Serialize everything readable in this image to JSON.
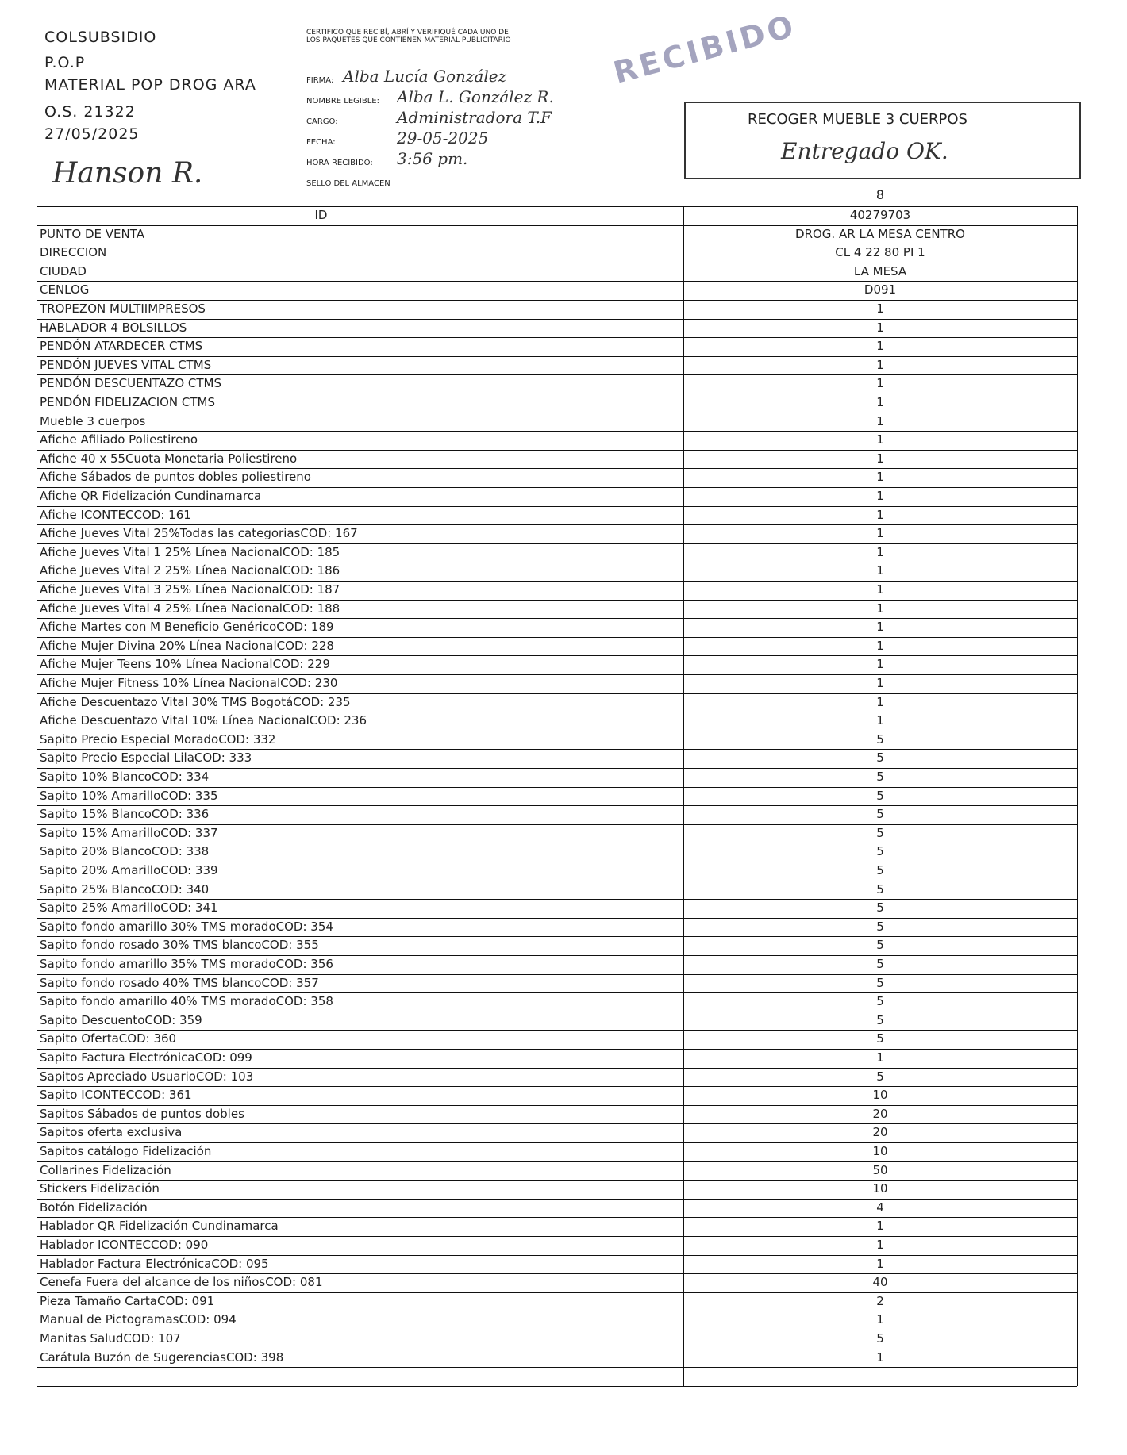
{
  "header": {
    "lines": [
      "COLSUBSIDIO",
      "P.O.P",
      "MATERIAL POP DROG ARA",
      "O.S. 21322",
      "27/05/2025"
    ],
    "signature": "Hanson R."
  },
  "certification": {
    "text": "CERTIFICO QUE RECIBÍ, ABRÍ Y VERIFIQUÉ CADA UNO DE LOS PAQUETES QUE CONTIENEN MATERIAL PUBLICITARIO",
    "fields": [
      {
        "label": "FIRMA:",
        "value": "Alba Lucía González"
      },
      {
        "label": "NOMBRE LEGIBLE:",
        "value": "Alba L. González R."
      },
      {
        "label": "CARGO:",
        "value": "Administradora T.F"
      },
      {
        "label": "FECHA:",
        "value": "29-05-2025"
      },
      {
        "label": "HORA RECIBIDO:",
        "value": "3:56 pm."
      },
      {
        "label": "SELLO DEL ALMACEN",
        "value": ""
      }
    ]
  },
  "stamp": {
    "text": "RECIBIDO",
    "note": "RECOGER MUEBLE 3 CUERPOS",
    "handwritten": "Entregado OK."
  },
  "table": {
    "column": "8",
    "header_rows": [
      [
        "ID",
        "40279703"
      ],
      [
        "PUNTO DE VENTA",
        "DROG. AR LA MESA CENTRO"
      ],
      [
        "DIRECCION",
        "CL 4 22 80 PI 1"
      ],
      [
        "CIUDAD",
        "LA MESA"
      ],
      [
        "CENLOG",
        "D091"
      ]
    ],
    "rows": [
      [
        "TROPEZON MULTIIMPRESOS",
        "1"
      ],
      [
        "HABLADOR 4 BOLSILLOS",
        "1"
      ],
      [
        "PENDÓN ATARDECER CTMS",
        "1"
      ],
      [
        "PENDÓN JUEVES VITAL CTMS",
        "1"
      ],
      [
        "PENDÓN DESCUENTAZO CTMS",
        "1"
      ],
      [
        "PENDÓN FIDELIZACION CTMS",
        "1"
      ],
      [
        "Mueble 3 cuerpos",
        "1"
      ],
      [
        "Afiche Afiliado Poliestireno",
        "1"
      ],
      [
        "Afiche 40 x 55Cuota Monetaria Poliestireno",
        "1"
      ],
      [
        "Afiche Sábados de puntos dobles poliestireno",
        "1"
      ],
      [
        "Afiche QR Fidelización Cundinamarca",
        "1"
      ],
      [
        "Afiche ICONTECCOD: 161",
        "1"
      ],
      [
        "Afiche Jueves Vital 25%Todas las categoriasCOD: 167",
        "1"
      ],
      [
        "Afiche Jueves Vital 1 25% Línea NacionalCOD: 185",
        "1"
      ],
      [
        "Afiche Jueves Vital 2 25% Línea NacionalCOD: 186",
        "1"
      ],
      [
        "Afiche Jueves Vital 3 25% Línea NacionalCOD: 187",
        "1"
      ],
      [
        "Afiche Jueves Vital 4 25% Línea NacionalCOD: 188",
        "1"
      ],
      [
        "Afiche Martes con M Beneficio GenéricoCOD: 189",
        "1"
      ],
      [
        "Afiche Mujer Divina 20% Línea NacionalCOD: 228",
        "1"
      ],
      [
        "Afiche Mujer Teens 10% Línea NacionalCOD: 229",
        "1"
      ],
      [
        "Afiche Mujer Fitness 10% Línea NacionalCOD: 230",
        "1"
      ],
      [
        "Afiche Descuentazo Vital 30% TMS BogotáCOD: 235",
        "1"
      ],
      [
        "Afiche Descuentazo Vital 10% Línea NacionalCOD: 236",
        "1"
      ],
      [
        "Sapito Precio Especial MoradoCOD: 332",
        "5"
      ],
      [
        "Sapito Precio Especial LilaCOD: 333",
        "5"
      ],
      [
        "Sapito 10% BlancoCOD: 334",
        "5"
      ],
      [
        "Sapito 10% AmarilloCOD: 335",
        "5"
      ],
      [
        "Sapito 15% BlancoCOD: 336",
        "5"
      ],
      [
        "Sapito 15% AmarilloCOD: 337",
        "5"
      ],
      [
        "Sapito 20% BlancoCOD: 338",
        "5"
      ],
      [
        "Sapito 20% AmarilloCOD: 339",
        "5"
      ],
      [
        "Sapito 25% BlancoCOD: 340",
        "5"
      ],
      [
        "Sapito 25% AmarilloCOD: 341",
        "5"
      ],
      [
        "Sapito fondo amarillo 30% TMS moradoCOD: 354",
        "5"
      ],
      [
        "Sapito fondo rosado 30% TMS blancoCOD: 355",
        "5"
      ],
      [
        "Sapito fondo amarillo 35% TMS moradoCOD: 356",
        "5"
      ],
      [
        "Sapito fondo rosado 40% TMS blancoCOD: 357",
        "5"
      ],
      [
        "Sapito fondo amarillo 40% TMS moradoCOD: 358",
        "5"
      ],
      [
        "Sapito DescuentoCOD: 359",
        "5"
      ],
      [
        "Sapito OfertaCOD: 360",
        "5"
      ],
      [
        "Sapito Factura ElectrónicaCOD: 099",
        "1"
      ],
      [
        "Sapitos Apreciado UsuarioCOD: 103",
        "5"
      ],
      [
        "Sapito ICONTECCOD: 361",
        "10"
      ],
      [
        "Sapitos Sábados de puntos dobles",
        "20"
      ],
      [
        "Sapitos oferta exclusiva",
        "20"
      ],
      [
        "Sapitos catálogo Fidelización",
        "10"
      ],
      [
        "Collarines Fidelización",
        "50"
      ],
      [
        "Stickers Fidelización",
        "10"
      ],
      [
        "Botón Fidelización",
        "4"
      ],
      [
        "Hablador QR Fidelización Cundinamarca",
        "1"
      ],
      [
        "Hablador ICONTECCOD: 090",
        "1"
      ],
      [
        "Hablador Factura ElectrónicaCOD: 095",
        "1"
      ],
      [
        "Cenefa Fuera del alcance de los niñosCOD: 081",
        "40"
      ],
      [
        "Pieza Tamaño CartaCOD: 091",
        "2"
      ],
      [
        "Manual de PictogramasCOD: 094",
        "1"
      ],
      [
        "Manitas SaludCOD: 107",
        "5"
      ],
      [
        "Carátula Buzón de SugerenciasCOD: 398",
        "1"
      ]
    ]
  }
}
